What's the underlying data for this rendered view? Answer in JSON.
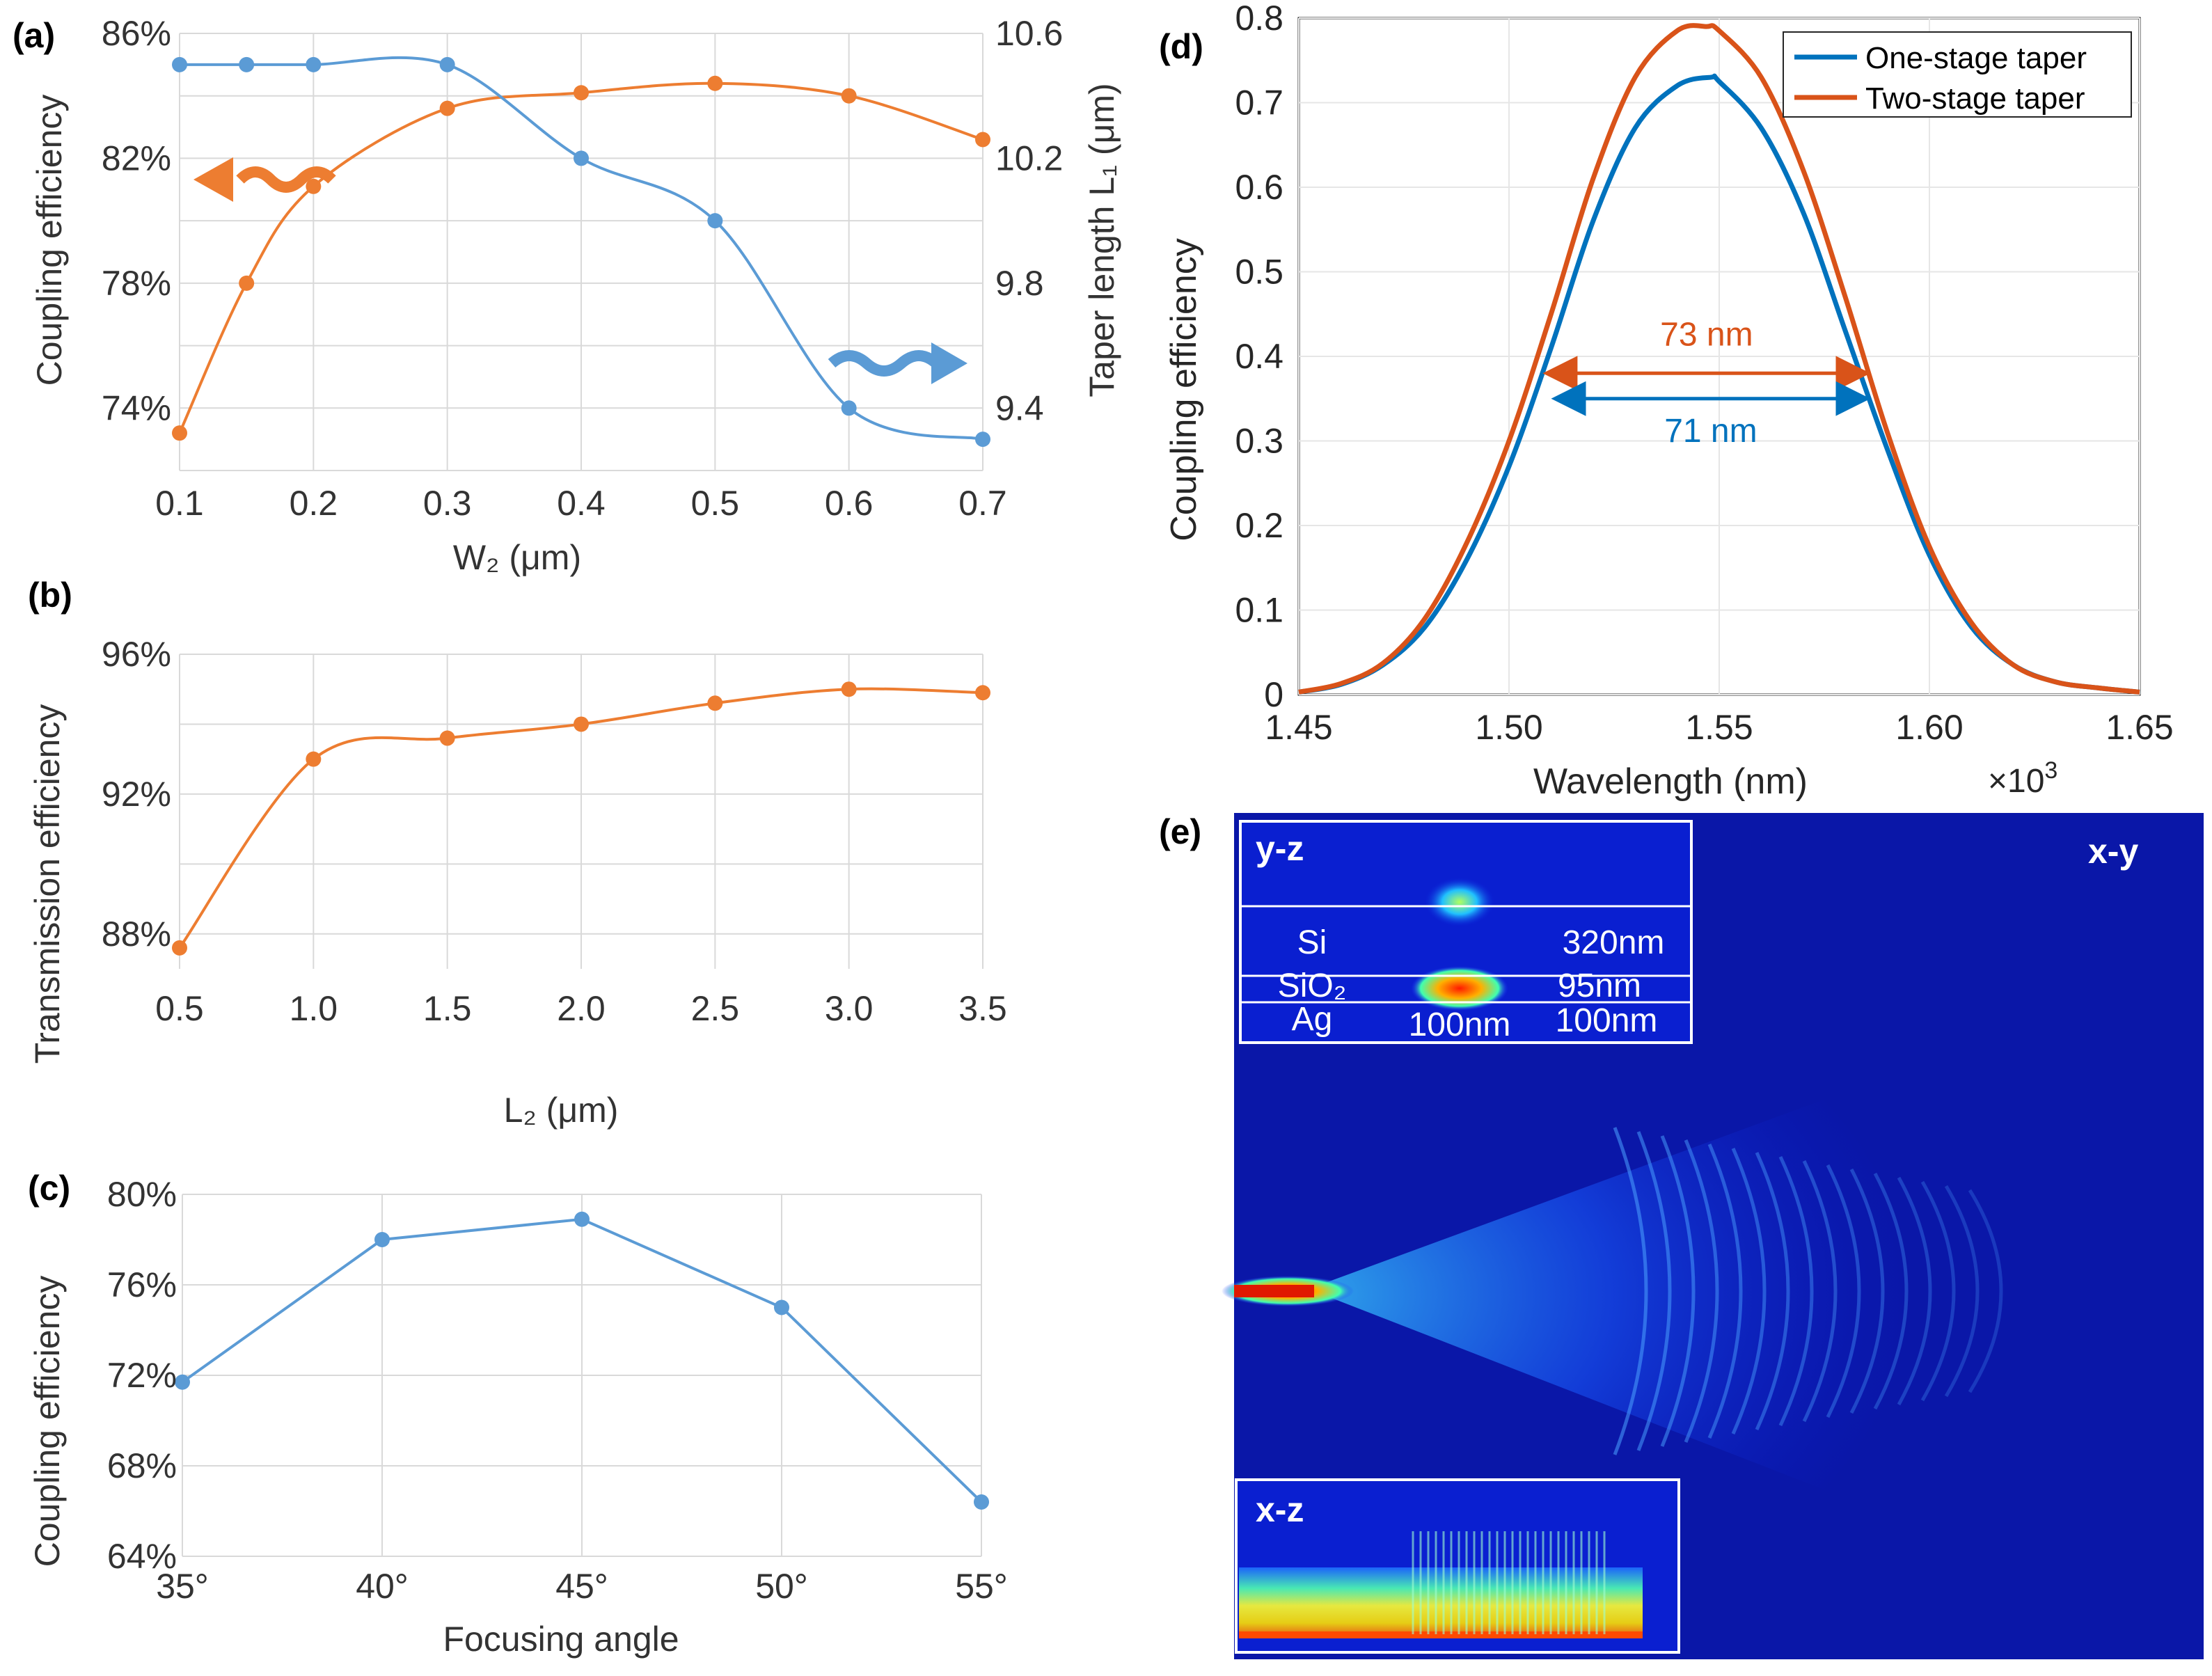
{
  "panel_labels": {
    "a": "(a)",
    "b": "(b)",
    "c": "(c)",
    "d": "(d)",
    "e": "(e)"
  },
  "chart_data": [
    {
      "id": "a",
      "type": "line",
      "xlabel": "W₂ (μm)",
      "ylabel": "Coupling efficiency",
      "ylabel_right": "Taper length L₁ (μm)",
      "xlim": [
        0.1,
        0.7
      ],
      "ylim": [
        72,
        86
      ],
      "ylim_right": [
        9.2,
        10.6
      ],
      "x_ticks": [
        "0.1",
        "0.2",
        "0.3",
        "0.4",
        "0.5",
        "0.6",
        "0.7"
      ],
      "y_ticks_left": [
        "74%",
        "78%",
        "82%",
        "86%"
      ],
      "y_ticks_right": [
        "9.4",
        "9.8",
        "10.2",
        "10.6"
      ],
      "series": [
        {
          "name": "Coupling efficiency",
          "axis": "left",
          "color": "#ED7D31",
          "x": [
            0.1,
            0.15,
            0.2,
            0.3,
            0.4,
            0.5,
            0.6,
            0.7
          ],
          "values": [
            73.2,
            78.0,
            81.1,
            83.6,
            84.1,
            84.4,
            84.0,
            82.6
          ]
        },
        {
          "name": "Taper length L1",
          "axis": "right",
          "color": "#5B9BD5",
          "x": [
            0.1,
            0.15,
            0.2,
            0.3,
            0.4,
            0.5,
            0.6,
            0.7
          ],
          "values": [
            10.5,
            10.5,
            10.5,
            10.5,
            10.2,
            10.0,
            9.4,
            9.3
          ]
        }
      ]
    },
    {
      "id": "b",
      "type": "line",
      "xlabel": "L₂ (μm)",
      "ylabel": "Transmission efficiency",
      "xlim": [
        0.5,
        3.5
      ],
      "ylim": [
        87,
        96
      ],
      "x_ticks": [
        "0.5",
        "1.0",
        "1.5",
        "2.0",
        "2.5",
        "3.0",
        "3.5"
      ],
      "y_ticks": [
        "88%",
        "92%",
        "96%"
      ],
      "series": [
        {
          "name": "Transmission efficiency",
          "color": "#ED7D31",
          "x": [
            0.5,
            1.0,
            1.5,
            2.0,
            2.5,
            3.0,
            3.5
          ],
          "values": [
            87.6,
            93.0,
            93.6,
            94.0,
            94.6,
            95.0,
            94.9
          ]
        }
      ]
    },
    {
      "id": "c",
      "type": "line",
      "xlabel": "Focusing angle",
      "ylabel": "Coupling efficiency",
      "xlim": [
        35,
        55
      ],
      "ylim": [
        64,
        80
      ],
      "x_ticks": [
        "35°",
        "40°",
        "45°",
        "50°",
        "55°"
      ],
      "y_ticks": [
        "64%",
        "68%",
        "72%",
        "76%",
        "80%"
      ],
      "series": [
        {
          "name": "Coupling efficiency",
          "color": "#5B9BD5",
          "x": [
            35,
            40,
            45,
            50,
            55
          ],
          "values": [
            71.7,
            78.0,
            78.9,
            75.0,
            66.4
          ]
        }
      ]
    },
    {
      "id": "d",
      "type": "line",
      "xlabel": "Wavelength (nm)",
      "ylabel": "Coupling efficiency",
      "x_multiplier": "×10",
      "x_multiplier_exp": "3",
      "xlim": [
        1.45,
        1.65
      ],
      "ylim": [
        0,
        0.8
      ],
      "x_ticks": [
        "1.45",
        "1.50",
        "1.55",
        "1.60",
        "1.65"
      ],
      "y_ticks": [
        "0",
        "0.1",
        "0.2",
        "0.3",
        "0.4",
        "0.5",
        "0.6",
        "0.7",
        "0.8"
      ],
      "legend": {
        "position": "top-right",
        "entries": [
          "One-stage taper",
          "Two-stage taper"
        ]
      },
      "series": [
        {
          "name": "One-stage taper",
          "color": "#0072BD",
          "x": [
            1.45,
            1.46,
            1.47,
            1.48,
            1.49,
            1.5,
            1.51,
            1.52,
            1.53,
            1.54,
            1.548,
            1.55,
            1.56,
            1.57,
            1.58,
            1.59,
            1.6,
            1.61,
            1.62,
            1.63,
            1.64,
            1.65
          ],
          "values": [
            0.003,
            0.012,
            0.035,
            0.08,
            0.16,
            0.27,
            0.41,
            0.56,
            0.67,
            0.72,
            0.73,
            0.725,
            0.67,
            0.57,
            0.43,
            0.29,
            0.165,
            0.08,
            0.035,
            0.015,
            0.008,
            0.003
          ]
        },
        {
          "name": "Two-stage taper",
          "color": "#D95319",
          "x": [
            1.45,
            1.46,
            1.47,
            1.48,
            1.49,
            1.5,
            1.51,
            1.52,
            1.53,
            1.54,
            1.547,
            1.55,
            1.56,
            1.57,
            1.58,
            1.59,
            1.6,
            1.61,
            1.62,
            1.63,
            1.64,
            1.65
          ],
          "values": [
            0.003,
            0.013,
            0.037,
            0.09,
            0.18,
            0.3,
            0.45,
            0.61,
            0.73,
            0.785,
            0.79,
            0.785,
            0.73,
            0.62,
            0.47,
            0.31,
            0.175,
            0.085,
            0.035,
            0.015,
            0.008,
            0.003
          ]
        }
      ],
      "annotations": [
        {
          "text": "73 nm",
          "color": "#D95319",
          "x_from": 1.5105,
          "x_to": 1.5835,
          "y": 0.38
        },
        {
          "text": "71 nm",
          "color": "#0072BD",
          "x_from": 1.5125,
          "x_to": 1.5835,
          "y": 0.35
        }
      ]
    }
  ],
  "panel_e": {
    "main_label": "x-y",
    "inset_yz": {
      "label": "y-z",
      "layers": [
        "Si",
        "SiO₂",
        "Ag"
      ],
      "thickness": [
        "320nm",
        "95nm",
        "100nm"
      ],
      "gap": "100nm"
    },
    "inset_xz": {
      "label": "x-z"
    }
  }
}
